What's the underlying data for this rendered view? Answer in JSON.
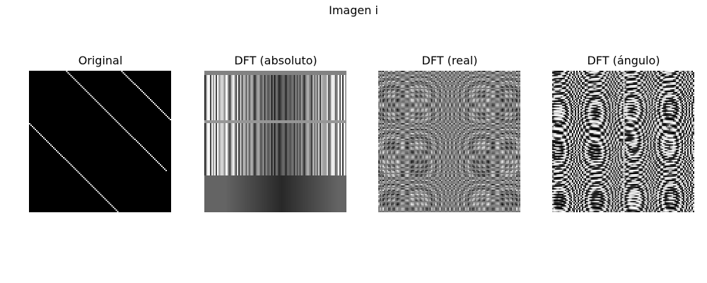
{
  "figure": {
    "title": "Imagen i",
    "panels": [
      {
        "title": "Original"
      },
      {
        "title": "DFT (absoluto)"
      },
      {
        "title": "DFT (real)"
      },
      {
        "title": "DFT (ángulo)"
      }
    ]
  },
  "colormap": "gray"
}
